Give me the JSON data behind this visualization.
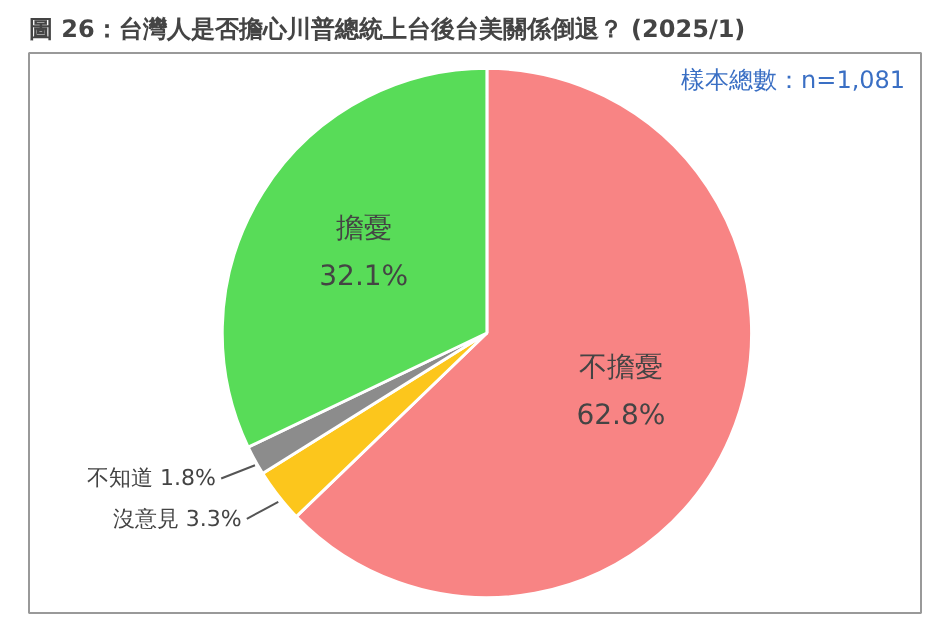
{
  "chart_data": {
    "type": "pie",
    "title": "圖 26：台灣人是否擔心川普總統上台後台美關係倒退？ (2025/1)",
    "categories": [
      "不擔憂",
      "沒意見",
      "不知道",
      "擔憂"
    ],
    "values": [
      62.8,
      3.3,
      1.8,
      32.1
    ],
    "value_labels": [
      "62.8%",
      "3.3%",
      "1.8%",
      "32.1%"
    ],
    "colors": [
      "#f88484",
      "#fcc61c",
      "#8c8c8c",
      "#58dc58"
    ],
    "annotations": [
      "樣本總數：n=1,081"
    ]
  }
}
